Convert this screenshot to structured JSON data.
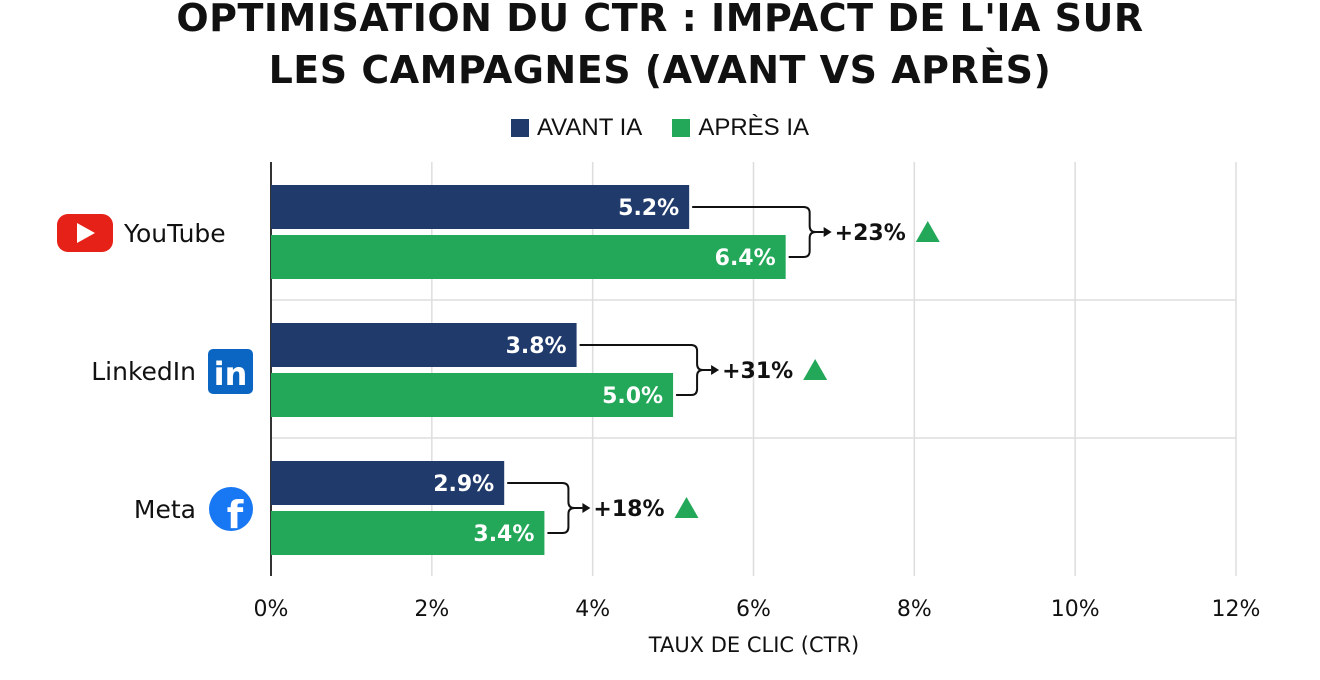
{
  "title_line_1": "OPTIMISATION DU CTR : IMPACT DE L'IA SUR",
  "title_line_2": "LES CAMPAGNES (AVANT VS APRÈS)",
  "colors": {
    "avant": "#1f3a6b",
    "apres": "#23a85a",
    "grid": "#dddddd",
    "youtube": "#e62117",
    "linkedin": "#0a66c2",
    "meta": "#1877f2"
  },
  "chart_data": {
    "type": "bar",
    "orientation": "horizontal",
    "title": "OPTIMISATION DU CTR : IMPACT DE L'IA SUR LES CAMPAGNES (AVANT VS APRÈS)",
    "xlabel": "TAUX DE CLIC (CTR)",
    "ylabel": "",
    "xlim": [
      0,
      12
    ],
    "x_ticks": [
      "0%",
      "2%",
      "4%",
      "6%",
      "8%",
      "10%",
      "12%"
    ],
    "grid": true,
    "legend_position": "top-center",
    "categories": [
      "YouTube",
      "LinkedIn",
      "Meta"
    ],
    "category_icons": [
      "youtube-icon",
      "linkedin-icon",
      "facebook-icon"
    ],
    "series": [
      {
        "name": "AVANT IA",
        "values": [
          5.2,
          3.8,
          2.9
        ],
        "labels": [
          "5.2%",
          "3.8%",
          "2.9%"
        ]
      },
      {
        "name": "APRÈS IA",
        "values": [
          6.4,
          5.0,
          3.4
        ],
        "labels": [
          "6.4%",
          "5.0%",
          "3.4%"
        ]
      }
    ],
    "annotations": [
      "+23%",
      "+31%",
      "+18%"
    ]
  }
}
